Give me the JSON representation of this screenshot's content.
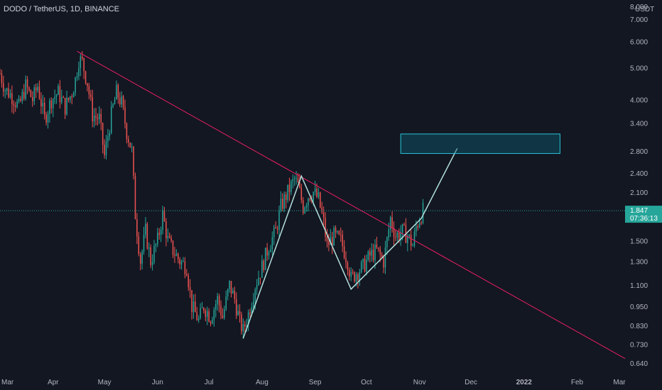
{
  "header": {
    "symbol": "DODO / TetherUS",
    "interval": "1D",
    "exchange": "BINANCE",
    "title": "DODO / TetherUS, 1D, BINANCE"
  },
  "price_axis": {
    "currency": "USDT",
    "top_label": "8.000"
  },
  "price_tag": {
    "price": "1.847",
    "countdown": "07:36:13"
  },
  "colors": {
    "background": "#131722",
    "up": "#26a69a",
    "down": "#ef5350",
    "trendline": "#e91e63",
    "pattern": "#b2dfdb",
    "box_fill": "#0e5c6e",
    "box_stroke": "#26c6da",
    "price_line": "#26a69a",
    "axis_text": "#b2b5be"
  },
  "chart_data": {
    "type": "candlestick",
    "title": "DODO / TetherUS, 1D, BINANCE",
    "scale": "log",
    "y_range": [
      0.6,
      8.0
    ],
    "y_ticks": [
      8.0,
      7.0,
      6.0,
      5.0,
      4.0,
      3.4,
      2.8,
      2.4,
      2.1,
      1.5,
      1.3,
      1.1,
      0.95,
      0.83,
      0.73,
      0.64
    ],
    "y_tick_labels": [
      "8.000",
      "7.000",
      "6.000",
      "5.000",
      "4.000",
      "3.400",
      "2.800",
      "2.400",
      "2.100",
      "1.500",
      "1.300",
      "1.100",
      "0.950",
      "0.830",
      "0.730",
      "0.640"
    ],
    "x_range": [
      "2021-03-01",
      "2022-03-01"
    ],
    "x_ticks": [
      {
        "date": "2021-03-01",
        "label": "Mar"
      },
      {
        "date": "2021-04-01",
        "label": "Apr"
      },
      {
        "date": "2021-05-01",
        "label": "May"
      },
      {
        "date": "2021-06-01",
        "label": "Jun"
      },
      {
        "date": "2021-07-01",
        "label": "Jul"
      },
      {
        "date": "2021-08-01",
        "label": "Aug"
      },
      {
        "date": "2021-09-01",
        "label": "Sep"
      },
      {
        "date": "2021-10-01",
        "label": "Oct"
      },
      {
        "date": "2021-11-01",
        "label": "Nov"
      },
      {
        "date": "2021-12-01",
        "label": "Dec"
      },
      {
        "date": "2022-01-01",
        "label": "2022"
      },
      {
        "date": "2022-02-01",
        "label": "Feb"
      },
      {
        "date": "2022-03-01",
        "label": "Mar"
      }
    ],
    "price_path": [
      [
        "2021-03-01",
        4.8
      ],
      [
        "2021-03-04",
        4.3
      ],
      [
        "2021-03-08",
        4.1
      ],
      [
        "2021-03-12",
        3.8
      ],
      [
        "2021-03-16",
        4.4
      ],
      [
        "2021-03-20",
        4.0
      ],
      [
        "2021-03-23",
        4.4
      ],
      [
        "2021-03-27",
        3.5
      ],
      [
        "2021-03-31",
        4.0
      ],
      [
        "2021-04-04",
        4.2
      ],
      [
        "2021-04-08",
        3.8
      ],
      [
        "2021-04-12",
        4.2
      ],
      [
        "2021-04-14",
        4.6
      ],
      [
        "2021-04-16",
        5.3
      ],
      [
        "2021-04-18",
        5.2
      ],
      [
        "2021-04-21",
        4.5
      ],
      [
        "2021-04-24",
        3.6
      ],
      [
        "2021-04-28",
        3.5
      ],
      [
        "2021-05-01",
        2.7
      ],
      [
        "2021-05-05",
        3.6
      ],
      [
        "2021-05-08",
        4.2
      ],
      [
        "2021-05-11",
        3.9
      ],
      [
        "2021-05-14",
        3.2
      ],
      [
        "2021-05-17",
        2.8
      ],
      [
        "2021-05-19",
        1.8
      ],
      [
        "2021-05-22",
        1.3
      ],
      [
        "2021-05-25",
        1.6
      ],
      [
        "2021-05-28",
        1.3
      ],
      [
        "2021-06-01",
        1.5
      ],
      [
        "2021-06-04",
        1.8
      ],
      [
        "2021-06-07",
        1.5
      ],
      [
        "2021-06-10",
        1.4
      ],
      [
        "2021-06-14",
        1.3
      ],
      [
        "2021-06-18",
        1.25
      ],
      [
        "2021-06-21",
        0.95
      ],
      [
        "2021-06-25",
        0.86
      ],
      [
        "2021-06-28",
        0.95
      ],
      [
        "2021-07-02",
        0.88
      ],
      [
        "2021-07-06",
        1.0
      ],
      [
        "2021-07-09",
        0.88
      ],
      [
        "2021-07-13",
        1.1
      ],
      [
        "2021-07-16",
        1.0
      ],
      [
        "2021-07-19",
        0.85
      ],
      [
        "2021-07-21",
        0.8
      ],
      [
        "2021-07-24",
        0.9
      ],
      [
        "2021-07-28",
        1.1
      ],
      [
        "2021-08-01",
        1.25
      ],
      [
        "2021-08-05",
        1.45
      ],
      [
        "2021-08-09",
        1.6
      ],
      [
        "2021-08-12",
        1.9
      ],
      [
        "2021-08-16",
        2.1
      ],
      [
        "2021-08-20",
        2.3
      ],
      [
        "2021-08-22",
        2.2
      ],
      [
        "2021-08-25",
        1.9
      ],
      [
        "2021-08-28",
        2.05
      ],
      [
        "2021-08-31",
        2.1
      ],
      [
        "2021-09-03",
        2.0
      ],
      [
        "2021-09-06",
        1.7
      ],
      [
        "2021-09-08",
        1.45
      ],
      [
        "2021-09-12",
        1.55
      ],
      [
        "2021-09-16",
        1.5
      ],
      [
        "2021-09-20",
        1.3
      ],
      [
        "2021-09-22",
        1.15
      ],
      [
        "2021-09-25",
        1.2
      ],
      [
        "2021-09-29",
        1.25
      ],
      [
        "2021-10-03",
        1.35
      ],
      [
        "2021-10-07",
        1.4
      ],
      [
        "2021-10-11",
        1.3
      ],
      [
        "2021-10-13",
        1.5
      ],
      [
        "2021-10-15",
        1.75
      ],
      [
        "2021-10-18",
        1.55
      ],
      [
        "2021-10-22",
        1.6
      ],
      [
        "2021-10-25",
        1.55
      ],
      [
        "2021-10-28",
        1.45
      ],
      [
        "2021-10-30",
        1.65
      ],
      [
        "2021-11-01",
        1.75
      ],
      [
        "2021-11-03",
        1.85
      ]
    ],
    "drawings": {
      "trendline": {
        "from": [
          "2021-04-15",
          5.6
        ],
        "to": [
          "2022-03-01",
          0.66
        ]
      },
      "pattern_path": [
        [
          "2021-07-21",
          0.76
        ],
        [
          "2021-08-24",
          2.35
        ],
        [
          "2021-09-22",
          1.07
        ],
        [
          "2021-11-02",
          1.75
        ],
        [
          "2021-11-23",
          2.85
        ]
      ],
      "target_box": {
        "from": [
          "2021-10-21",
          2.75
        ],
        "to": [
          "2022-01-22",
          3.15
        ]
      }
    }
  }
}
